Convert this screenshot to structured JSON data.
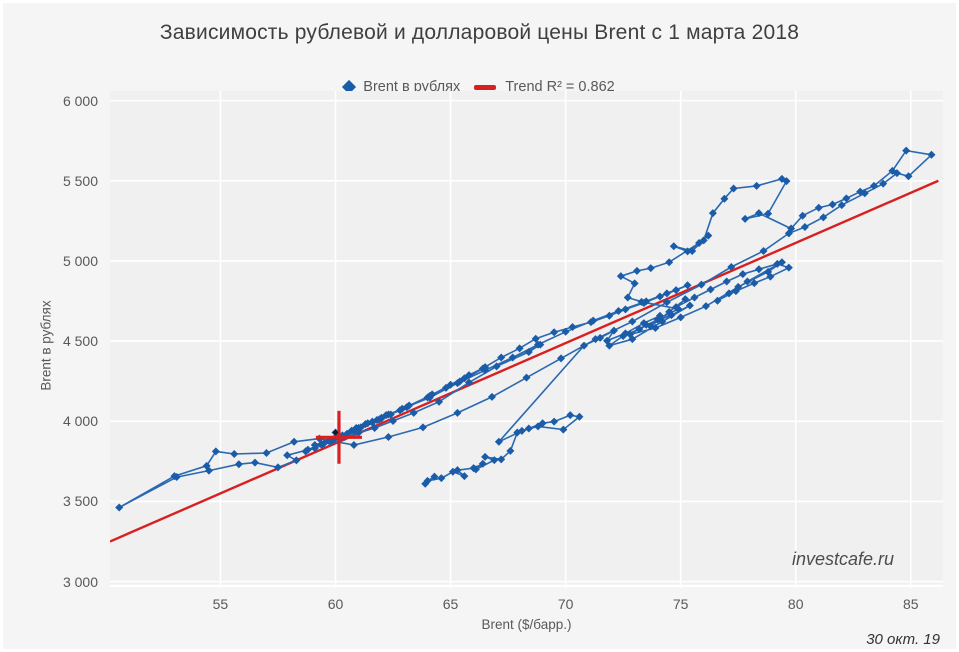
{
  "title": "Зависимость рублевой и долларовой цены Brent с 1 марта 2018",
  "legend": {
    "series_label": "Brent в рублях",
    "trend_label": "Trend R² = 0,862"
  },
  "watermark": "investcafe.ru",
  "date_label": "30 окт. 19",
  "colors": {
    "marker_blue": "#1b5ca8",
    "line_blue": "#2a69b2",
    "trend_red": "#d92020",
    "plot_bg": "#f0f0f0",
    "outer_bg": "#f5f5f6",
    "grid": "#ffffff",
    "current_dot": "#1a1a1a"
  },
  "chart_data": {
    "type": "scatter",
    "title": "Зависимость рублевой и долларовой цены Brent с 1 марта 2018",
    "xlabel": "Brent ($/барр.)",
    "ylabel": "Brent в рублях",
    "xlim": [
      50.2,
      86.4
    ],
    "ylim": [
      2960,
      6060
    ],
    "x_ticks": [
      55,
      60,
      65,
      70,
      75,
      80,
      85
    ],
    "y_ticks": [
      3000,
      3500,
      4000,
      4500,
      5000,
      5500,
      6000
    ],
    "y_tick_labels": [
      "3 000",
      "3 500",
      "4 000",
      "4 500",
      "5 000",
      "5 500",
      "6 000"
    ],
    "grid": true,
    "legend_position": "top-center",
    "series": [
      {
        "name": "Brent в рублях",
        "marker": "diamond",
        "connected": true,
        "points": [
          [
            63.9,
            3610
          ],
          [
            64.3,
            3655
          ],
          [
            64.0,
            3628
          ],
          [
            64.6,
            3645
          ],
          [
            65.1,
            3685
          ],
          [
            65.6,
            3658
          ],
          [
            65.3,
            3695
          ],
          [
            66.0,
            3708
          ],
          [
            66.4,
            3735
          ],
          [
            66.1,
            3700
          ],
          [
            66.9,
            3758
          ],
          [
            66.5,
            3778
          ],
          [
            67.2,
            3762
          ],
          [
            67.6,
            3815
          ],
          [
            67.9,
            3930
          ],
          [
            68.4,
            3955
          ],
          [
            69.0,
            3988
          ],
          [
            69.5,
            3998
          ],
          [
            70.2,
            4038
          ],
          [
            70.6,
            4028
          ],
          [
            69.9,
            3948
          ],
          [
            68.8,
            3968
          ],
          [
            68.1,
            3940
          ],
          [
            67.1,
            3872
          ],
          [
            70.8,
            4472
          ],
          [
            71.5,
            4520
          ],
          [
            72.1,
            4565
          ],
          [
            71.8,
            4502
          ],
          [
            72.6,
            4548
          ],
          [
            73.4,
            4612
          ],
          [
            74.1,
            4658
          ],
          [
            73.7,
            4592
          ],
          [
            74.5,
            4682
          ],
          [
            75.2,
            4762
          ],
          [
            74.8,
            4712
          ],
          [
            75.6,
            4772
          ],
          [
            76.3,
            4822
          ],
          [
            77.0,
            4872
          ],
          [
            77.7,
            4918
          ],
          [
            78.4,
            4948
          ],
          [
            79.2,
            4982
          ],
          [
            79.7,
            4958
          ],
          [
            78.9,
            4902
          ],
          [
            78.2,
            4862
          ],
          [
            77.4,
            4812
          ],
          [
            76.6,
            4752
          ],
          [
            77.1,
            4798
          ],
          [
            77.9,
            4872
          ],
          [
            79.4,
            4992
          ],
          [
            78.8,
            4932
          ],
          [
            77.5,
            4838
          ],
          [
            76.1,
            4718
          ],
          [
            75.0,
            4648
          ],
          [
            73.9,
            4582
          ],
          [
            72.8,
            4542
          ],
          [
            73.5,
            4602
          ],
          [
            74.6,
            4662
          ],
          [
            75.4,
            4722
          ],
          [
            74.2,
            4622
          ],
          [
            72.9,
            4512
          ],
          [
            71.9,
            4472
          ],
          [
            72.5,
            4532
          ],
          [
            73.2,
            4575
          ],
          [
            74.0,
            4635
          ],
          [
            74.9,
            4700
          ],
          [
            73.3,
            4745
          ],
          [
            72.7,
            4772
          ],
          [
            73.0,
            4860
          ],
          [
            72.4,
            4905
          ],
          [
            73.1,
            4938
          ],
          [
            73.7,
            4955
          ],
          [
            74.5,
            4992
          ],
          [
            75.8,
            5112
          ],
          [
            76.2,
            5158
          ],
          [
            75.5,
            5062
          ],
          [
            74.7,
            5092
          ],
          [
            75.3,
            5060
          ],
          [
            76.0,
            5128
          ],
          [
            76.4,
            5298
          ],
          [
            76.9,
            5388
          ],
          [
            77.3,
            5452
          ],
          [
            78.3,
            5468
          ],
          [
            79.4,
            5512
          ],
          [
            79.6,
            5498
          ],
          [
            78.8,
            5295
          ],
          [
            77.8,
            5262
          ],
          [
            78.4,
            5298
          ],
          [
            79.8,
            5202
          ],
          [
            80.3,
            5282
          ],
          [
            81.0,
            5332
          ],
          [
            81.6,
            5352
          ],
          [
            82.2,
            5390
          ],
          [
            82.8,
            5432
          ],
          [
            83.4,
            5468
          ],
          [
            84.2,
            5562
          ],
          [
            84.8,
            5688
          ],
          [
            85.9,
            5662
          ],
          [
            84.9,
            5528
          ],
          [
            84.4,
            5548
          ],
          [
            83.8,
            5482
          ],
          [
            83.0,
            5422
          ],
          [
            82.0,
            5348
          ],
          [
            81.2,
            5272
          ],
          [
            80.4,
            5212
          ],
          [
            79.7,
            5172
          ],
          [
            78.6,
            5062
          ],
          [
            77.2,
            4962
          ],
          [
            75.9,
            4852
          ],
          [
            74.4,
            4742
          ],
          [
            72.9,
            4622
          ],
          [
            71.3,
            4512
          ],
          [
            69.8,
            4392
          ],
          [
            68.3,
            4272
          ],
          [
            66.8,
            4152
          ],
          [
            65.3,
            4052
          ],
          [
            63.8,
            3962
          ],
          [
            62.3,
            3902
          ],
          [
            60.8,
            3852
          ],
          [
            59.3,
            3892
          ],
          [
            58.2,
            3872
          ],
          [
            57.0,
            3802
          ],
          [
            55.6,
            3796
          ],
          [
            54.8,
            3812
          ],
          [
            54.4,
            3722
          ],
          [
            53.0,
            3658
          ],
          [
            50.6,
            3462
          ],
          [
            53.1,
            3652
          ],
          [
            54.5,
            3692
          ],
          [
            55.8,
            3732
          ],
          [
            56.5,
            3742
          ],
          [
            57.5,
            3712
          ],
          [
            58.3,
            3756
          ],
          [
            57.9,
            3788
          ],
          [
            58.8,
            3822
          ],
          [
            59.4,
            3858
          ],
          [
            60.1,
            3898
          ],
          [
            60.8,
            3942
          ],
          [
            61.6,
            3992
          ],
          [
            62.4,
            4042
          ],
          [
            63.2,
            4098
          ],
          [
            64.1,
            4158
          ],
          [
            65.0,
            4228
          ],
          [
            65.8,
            4288
          ],
          [
            66.5,
            4338
          ],
          [
            67.2,
            4398
          ],
          [
            68.0,
            4455
          ],
          [
            68.7,
            4515
          ],
          [
            69.5,
            4555
          ],
          [
            70.3,
            4588
          ],
          [
            71.1,
            4618
          ],
          [
            71.9,
            4658
          ],
          [
            72.6,
            4698
          ],
          [
            73.4,
            4738
          ],
          [
            74.1,
            4778
          ],
          [
            74.8,
            4818
          ],
          [
            75.3,
            4848
          ],
          [
            74.4,
            4798
          ],
          [
            73.5,
            4748
          ],
          [
            72.3,
            4688
          ],
          [
            71.2,
            4628
          ],
          [
            70.0,
            4558
          ],
          [
            68.8,
            4478
          ],
          [
            67.7,
            4398
          ],
          [
            66.5,
            4318
          ],
          [
            65.3,
            4238
          ],
          [
            64.1,
            4148
          ],
          [
            62.9,
            4078
          ],
          [
            61.8,
            4008
          ],
          [
            60.9,
            3958
          ],
          [
            60.1,
            3902
          ],
          [
            61.3,
            3982
          ],
          [
            62.2,
            4038
          ],
          [
            63.1,
            4088
          ],
          [
            64.0,
            4148
          ],
          [
            64.8,
            4208
          ],
          [
            65.6,
            4268
          ],
          [
            66.4,
            4328
          ],
          [
            65.4,
            4248
          ],
          [
            64.2,
            4168
          ],
          [
            63.1,
            4088
          ],
          [
            62.0,
            4018
          ],
          [
            61.1,
            3962
          ],
          [
            60.3,
            3912
          ],
          [
            59.5,
            3862
          ],
          [
            58.7,
            3812
          ],
          [
            59.4,
            3852
          ],
          [
            60.5,
            3922
          ],
          [
            61.4,
            3988
          ],
          [
            62.3,
            4042
          ],
          [
            61.6,
            3998
          ],
          [
            60.7,
            3942
          ],
          [
            59.9,
            3882
          ],
          [
            59.1,
            3832
          ],
          [
            59.8,
            3872
          ],
          [
            60.9,
            3952
          ],
          [
            62.0,
            4022
          ],
          [
            62.8,
            4068
          ],
          [
            61.9,
            4012
          ],
          [
            61.0,
            3958
          ],
          [
            60.2,
            3898
          ],
          [
            68.9,
            4478
          ],
          [
            68.4,
            4432
          ],
          [
            67.0,
            4342
          ],
          [
            65.8,
            4242
          ],
          [
            64.5,
            4122
          ],
          [
            63.4,
            4052
          ],
          [
            62.5,
            4002
          ],
          [
            61.7,
            3958
          ],
          [
            61.0,
            3928
          ],
          [
            60.4,
            3902
          ],
          [
            59.7,
            3878
          ],
          [
            59.1,
            3852
          ],
          [
            59.9,
            3888
          ],
          [
            60.0,
            3930
          ]
        ]
      }
    ],
    "trend": {
      "name": "Trend R² = 0,862",
      "r2": "0,862",
      "from": [
        50.2,
        3250
      ],
      "to": [
        86.2,
        5500
      ]
    },
    "current_point": {
      "x": 60.15,
      "y": 3900,
      "cross_half_x": 1.0,
      "cross_half_y": 165,
      "dot": [
        60.0,
        3930
      ]
    }
  }
}
